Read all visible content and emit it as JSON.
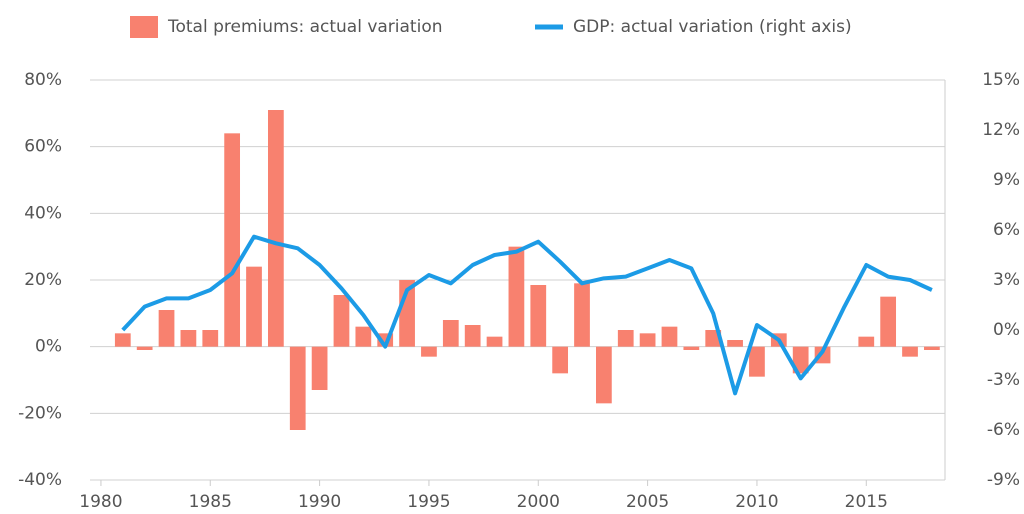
{
  "chart_data": {
    "type": "bar",
    "x": [
      1981,
      1982,
      1983,
      1984,
      1985,
      1986,
      1987,
      1988,
      1989,
      1990,
      1991,
      1992,
      1993,
      1994,
      1995,
      1996,
      1997,
      1998,
      1999,
      2000,
      2001,
      2002,
      2003,
      2004,
      2005,
      2006,
      2007,
      2008,
      2009,
      2010,
      2011,
      2012,
      2013,
      2014,
      2015,
      2016,
      2017,
      2018
    ],
    "xlim": [
      1979.5,
      2018.6
    ],
    "xticks": [
      1980,
      1985,
      1990,
      1995,
      2000,
      2005,
      2010,
      2015
    ],
    "ylim": [
      -40,
      80
    ],
    "yticks": [
      {
        "value": -40,
        "label": "-40%"
      },
      {
        "value": -20,
        "label": "-20%"
      },
      {
        "value": 0,
        "label": "0%"
      },
      {
        "value": 20,
        "label": "20%"
      },
      {
        "value": 40,
        "label": "40%"
      },
      {
        "value": 60,
        "label": "60%"
      },
      {
        "value": 80,
        "label": "80%"
      }
    ],
    "y2lim": [
      -9,
      15
    ],
    "y2ticks": [
      {
        "value": -9,
        "label": "-9%"
      },
      {
        "value": -6,
        "label": "-6%"
      },
      {
        "value": -3,
        "label": "-3%"
      },
      {
        "value": 0,
        "label": "0%"
      },
      {
        "value": 3,
        "label": "3%"
      },
      {
        "value": 6,
        "label": "6%"
      },
      {
        "value": 9,
        "label": "9%"
      },
      {
        "value": 12,
        "label": "12%"
      },
      {
        "value": 15,
        "label": "15%"
      }
    ],
    "grid": true,
    "series": [
      {
        "name": "Total premiums: actual variation",
        "type": "bar",
        "color": "#f8816f",
        "values": [
          4,
          -1,
          11,
          5,
          5,
          64,
          24,
          71,
          -25,
          -13,
          15.5,
          6,
          4,
          20,
          -3,
          8,
          6.5,
          3,
          30,
          18.5,
          -8,
          19,
          -17,
          5,
          4,
          6,
          -1,
          5,
          2,
          -9,
          4,
          -8,
          -5,
          0,
          3,
          15,
          -3,
          -1
        ]
      },
      {
        "name": "GDP: actual variation (right axis)",
        "type": "line",
        "axis": "y2",
        "color": "#1c9be6",
        "values": [
          0,
          1.4,
          1.9,
          1.9,
          2.4,
          3.4,
          5.6,
          5.2,
          4.9,
          3.9,
          2.5,
          0.9,
          -1,
          2.4,
          3.3,
          2.8,
          3.9,
          4.5,
          4.7,
          5.3,
          4.1,
          2.8,
          3.1,
          3.2,
          3.7,
          4.2,
          3.7,
          1.0,
          -3.8,
          0.3,
          -0.6,
          -2.9,
          -1.3,
          1.4,
          3.9,
          3.2,
          3.0,
          2.4
        ]
      }
    ]
  }
}
